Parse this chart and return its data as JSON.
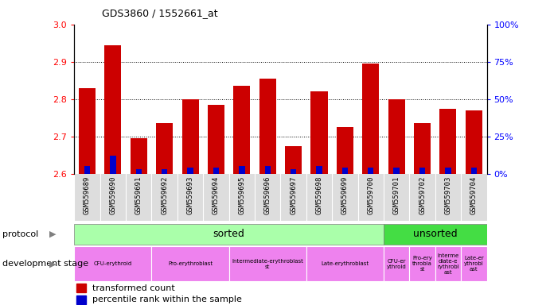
{
  "title": "GDS3860 / 1552661_at",
  "samples": [
    "GSM559689",
    "GSM559690",
    "GSM559691",
    "GSM559692",
    "GSM559693",
    "GSM559694",
    "GSM559695",
    "GSM559696",
    "GSM559697",
    "GSM559698",
    "GSM559699",
    "GSM559700",
    "GSM559701",
    "GSM559702",
    "GSM559703",
    "GSM559704"
  ],
  "transformed_count": [
    2.83,
    2.945,
    2.695,
    2.735,
    2.8,
    2.785,
    2.835,
    2.855,
    2.675,
    2.82,
    2.725,
    2.895,
    2.8,
    2.735,
    2.775,
    2.77
  ],
  "percentile_rank": [
    5,
    12,
    3,
    3,
    4,
    4,
    5,
    5,
    3,
    5,
    4,
    4,
    4,
    4,
    4,
    4
  ],
  "bar_color_red": "#cc0000",
  "bar_color_blue": "#0000cc",
  "ylim": [
    2.6,
    3.0
  ],
  "yticks": [
    2.6,
    2.7,
    2.8,
    2.9,
    3.0
  ],
  "right_ytick_labels": [
    "0%",
    "25%",
    "50%",
    "75%",
    "100%"
  ],
  "right_ytick_vals": [
    0,
    25,
    50,
    75,
    100
  ],
  "bg_color": "#ffffff",
  "sorted_color": "#aaffaa",
  "unsorted_color": "#44dd44",
  "dev_color": "#ee82ee",
  "gray_bg": "#dddddd"
}
